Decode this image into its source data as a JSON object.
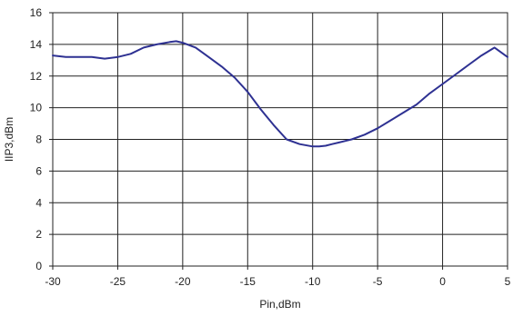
{
  "chart_data": {
    "type": "line",
    "xlabel": "Pin,dBm",
    "ylabel": "IIP3,dBm",
    "xlim": [
      -30,
      5
    ],
    "ylim": [
      0,
      16
    ],
    "x_ticks": [
      -30,
      -25,
      -20,
      -15,
      -10,
      -5,
      0,
      5
    ],
    "y_ticks": [
      0,
      2,
      4,
      6,
      8,
      10,
      12,
      14,
      16
    ],
    "grid": true,
    "series_color": "#2e3192",
    "series": [
      {
        "x": [
          -30,
          -29,
          -28,
          -27,
          -26,
          -25,
          -24,
          -23,
          -22,
          -21,
          -20.5,
          -20,
          -19,
          -18,
          -17,
          -16,
          -15,
          -14,
          -13,
          -12,
          -11,
          -10,
          -9.5,
          -9,
          -8.5,
          -8,
          -7,
          -6,
          -5,
          -4,
          -3,
          -2,
          -1,
          0,
          1,
          2,
          3,
          4,
          5
        ],
        "y": [
          13.3,
          13.2,
          13.2,
          13.2,
          13.1,
          13.2,
          13.4,
          13.8,
          14.0,
          14.15,
          14.2,
          14.1,
          13.8,
          13.2,
          12.6,
          11.9,
          11.0,
          9.9,
          8.9,
          8.0,
          7.7,
          7.55,
          7.55,
          7.6,
          7.7,
          7.8,
          8.0,
          8.3,
          8.7,
          9.2,
          9.7,
          10.2,
          10.9,
          11.5,
          12.1,
          12.7,
          13.3,
          13.8,
          13.2
        ]
      }
    ]
  }
}
